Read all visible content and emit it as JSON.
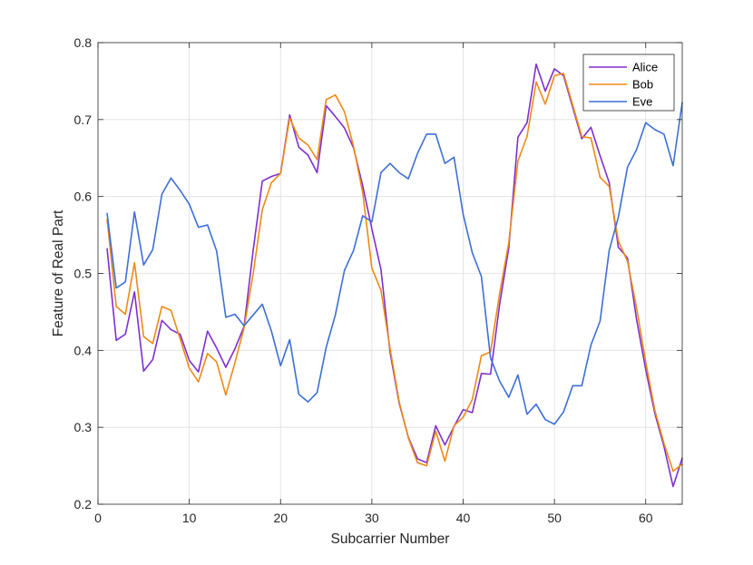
{
  "chart_data": {
    "type": "line",
    "xlabel": "Subcarrier Number",
    "ylabel": "Feature of Real Part",
    "xlim": [
      0,
      64
    ],
    "ylim": [
      0.2,
      0.8
    ],
    "xticks": [
      0,
      10,
      20,
      30,
      40,
      50,
      60
    ],
    "yticks": [
      0.2,
      0.3,
      0.4,
      0.5,
      0.6,
      0.7,
      0.8
    ],
    "xtick_labels": [
      "0",
      "10",
      "20",
      "30",
      "40",
      "50",
      "60"
    ],
    "ytick_labels": [
      "0.2",
      "0.3",
      "0.4",
      "0.5",
      "0.6",
      "0.7",
      "0.8"
    ],
    "grid": true,
    "legend_position": "top-right",
    "x": [
      1,
      2,
      3,
      4,
      5,
      6,
      7,
      8,
      9,
      10,
      11,
      12,
      13,
      14,
      15,
      16,
      17,
      18,
      19,
      20,
      21,
      22,
      23,
      24,
      25,
      26,
      27,
      28,
      29,
      30,
      31,
      32,
      33,
      34,
      35,
      36,
      37,
      38,
      39,
      40,
      41,
      42,
      43,
      44,
      45,
      46,
      47,
      48,
      49,
      50,
      51,
      52,
      53,
      54,
      55,
      56,
      57,
      58,
      59,
      60,
      61,
      62,
      63,
      64
    ],
    "series": [
      {
        "name": "Alice",
        "color": "#7e2fd0",
        "values": [
          0.532,
          0.413,
          0.421,
          0.476,
          0.373,
          0.388,
          0.439,
          0.427,
          0.421,
          0.387,
          0.372,
          0.425,
          0.403,
          0.378,
          0.402,
          0.431,
          0.53,
          0.62,
          0.626,
          0.63,
          0.706,
          0.664,
          0.654,
          0.631,
          0.718,
          0.704,
          0.689,
          0.663,
          0.614,
          0.558,
          0.505,
          0.397,
          0.331,
          0.287,
          0.259,
          0.254,
          0.302,
          0.277,
          0.301,
          0.323,
          0.319,
          0.37,
          0.369,
          0.46,
          0.533,
          0.677,
          0.696,
          0.772,
          0.737,
          0.766,
          0.757,
          0.716,
          0.675,
          0.69,
          0.653,
          0.618,
          0.534,
          0.52,
          0.44,
          0.375,
          0.318,
          0.275,
          0.223,
          0.26
        ]
      },
      {
        "name": "Bob",
        "color": "#ee8a14",
        "values": [
          0.57,
          0.457,
          0.447,
          0.514,
          0.418,
          0.409,
          0.457,
          0.452,
          0.415,
          0.377,
          0.359,
          0.396,
          0.385,
          0.342,
          0.384,
          0.429,
          0.5,
          0.583,
          0.618,
          0.63,
          0.702,
          0.676,
          0.667,
          0.648,
          0.726,
          0.732,
          0.71,
          0.665,
          0.605,
          0.507,
          0.478,
          0.402,
          0.333,
          0.286,
          0.254,
          0.25,
          0.295,
          0.256,
          0.302,
          0.313,
          0.336,
          0.393,
          0.398,
          0.474,
          0.54,
          0.646,
          0.678,
          0.749,
          0.72,
          0.757,
          0.76,
          0.719,
          0.678,
          0.676,
          0.625,
          0.613,
          0.542,
          0.516,
          0.455,
          0.385,
          0.322,
          0.279,
          0.243,
          0.252
        ]
      },
      {
        "name": "Eve",
        "color": "#3c6fd6",
        "values": [
          0.578,
          0.481,
          0.489,
          0.58,
          0.511,
          0.531,
          0.603,
          0.624,
          0.608,
          0.59,
          0.56,
          0.563,
          0.529,
          0.443,
          0.447,
          0.432,
          0.446,
          0.46,
          0.425,
          0.38,
          0.414,
          0.343,
          0.333,
          0.345,
          0.404,
          0.446,
          0.504,
          0.53,
          0.575,
          0.567,
          0.631,
          0.643,
          0.631,
          0.623,
          0.656,
          0.681,
          0.681,
          0.643,
          0.651,
          0.577,
          0.527,
          0.496,
          0.39,
          0.36,
          0.339,
          0.368,
          0.317,
          0.33,
          0.31,
          0.304,
          0.32,
          0.354,
          0.354,
          0.407,
          0.438,
          0.53,
          0.573,
          0.638,
          0.661,
          0.696,
          0.687,
          0.681,
          0.64,
          0.722
        ]
      }
    ]
  }
}
